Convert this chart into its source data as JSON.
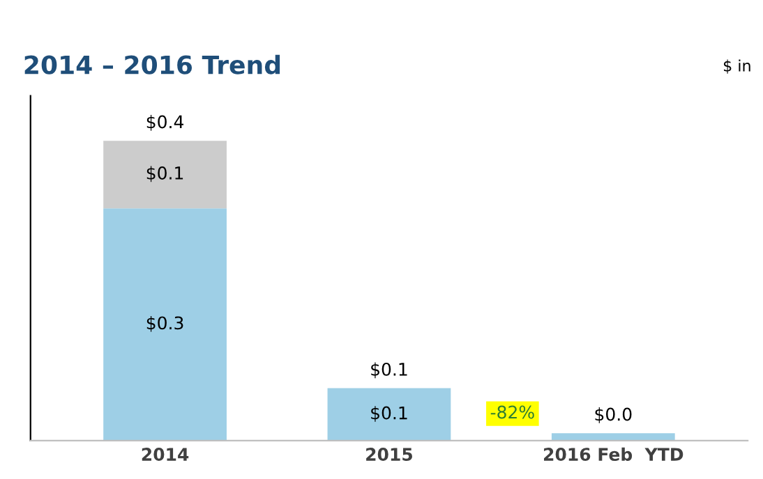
{
  "chart_data": {
    "type": "bar",
    "title": "2014 – 2016 Trend",
    "stacked": true,
    "categories": [
      "2014",
      "2015",
      "2016 Feb  YTD"
    ],
    "series": [
      {
        "color": "#9ecfe6",
        "values": [
          0.31,
          0.07,
          0.01
        ],
        "value_labels": [
          "$0.3",
          "$0.1",
          null
        ]
      },
      {
        "color": "#cccccc",
        "values": [
          0.09,
          null,
          null
        ],
        "value_labels": [
          "$0.1",
          null,
          null
        ]
      }
    ],
    "totals": [
      "$0.4",
      "$0.1",
      "$0.0"
    ],
    "annotations": [
      "$ in",
      "-82%"
    ],
    "grid": false
  }
}
